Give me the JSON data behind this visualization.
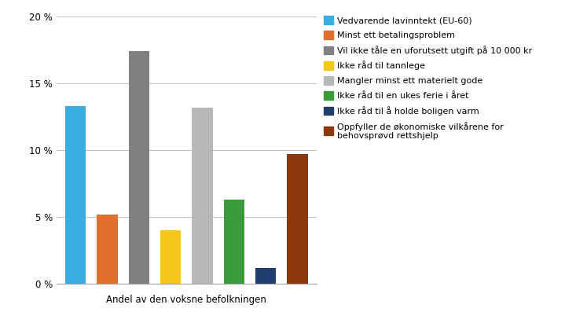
{
  "categories": [
    "Vedvarende lavinntekt (EU-60)",
    "Minst ett betalingsproblem",
    "Vil ikke tåle en uforutsett utgift på 10 000 kr",
    "Ikke råd til tannlege",
    "Mangler minst ett materielt gode",
    "Ikke råd til en ukes ferie i året",
    "Ikke råd til å holde boligen varm",
    "Oppfyller de økonomiske vilkårene for behovsprøvd rettshjelp"
  ],
  "values": [
    13.3,
    5.2,
    17.4,
    4.0,
    13.2,
    6.3,
    1.2,
    9.7
  ],
  "colors": [
    "#3aace0",
    "#e07030",
    "#808080",
    "#f5c518",
    "#b8b8b8",
    "#3a9a3a",
    "#1e3f6e",
    "#8b3a0f"
  ],
  "xlabel": "Andel av den voksne befolkningen",
  "ylim": [
    0,
    20
  ],
  "yticks": [
    0,
    5,
    10,
    15,
    20
  ],
  "ytick_labels": [
    "0 %",
    "5 %",
    "10 %",
    "15 %",
    "20 %"
  ],
  "legend_labels": [
    "Vedvarende lavinntekt (EU-60)",
    "Minst ett betalingsproblem",
    "Vil ikke tåle en uforutsett utgift på 10 000 kr",
    "Ikke råd til tannlege",
    "Mangler minst ett materielt gode",
    "Ikke råd til en ukes ferie i året",
    "Ikke råd til å holde boligen varm",
    "Oppfyller de økonomiske vilkårene for\nbehovsprøvd rettshjelp"
  ],
  "legend_colors": [
    "#3aace0",
    "#e07030",
    "#808080",
    "#f5c518",
    "#b8b8b8",
    "#3a9a3a",
    "#1e3f6e",
    "#8b3a0f"
  ],
  "background_color": "#ffffff",
  "grid_color": "#c0c0c0",
  "bar_width": 0.65,
  "axis_fontsize": 8.5,
  "legend_fontsize": 8.0
}
